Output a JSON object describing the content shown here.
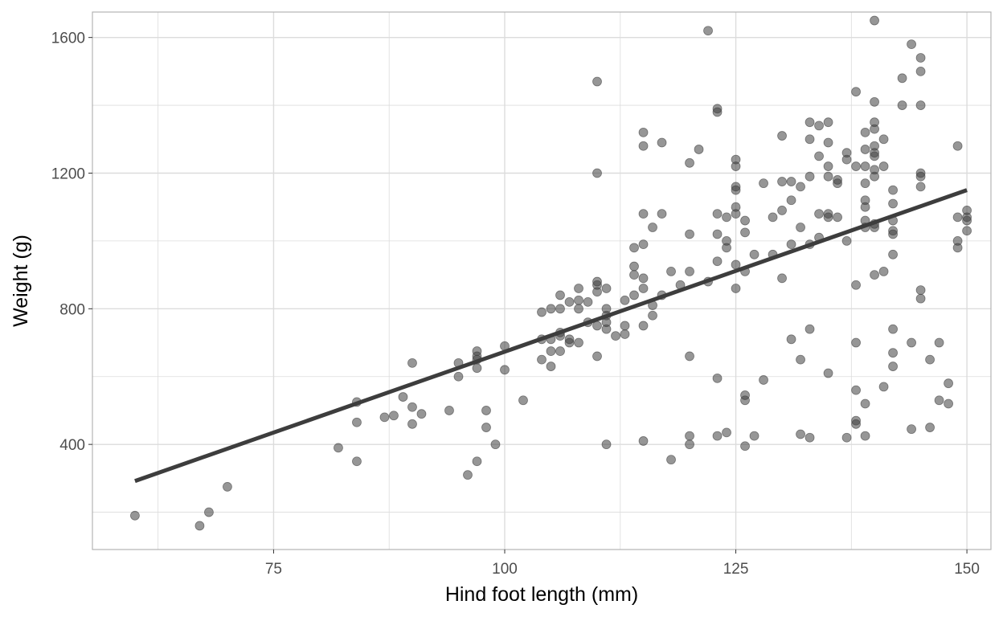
{
  "chart_data": {
    "type": "scatter",
    "title": "",
    "xlabel": "Hind foot length (mm)",
    "ylabel": "Weight (g)",
    "xlim": [
      55.4,
      152.6
    ],
    "ylim": [
      90,
      1675
    ],
    "x_ticks": [
      75,
      100,
      125,
      150
    ],
    "x_tick_labels": [
      "75",
      "100",
      "125",
      "150"
    ],
    "y_ticks": [
      400,
      800,
      1200,
      1600
    ],
    "y_tick_labels": [
      "400",
      "800",
      "1200",
      "1600"
    ],
    "x_minor_grid": [
      62.5,
      87.5,
      112.5,
      137.5
    ],
    "y_minor_grid": [
      200,
      600,
      1000,
      1400
    ],
    "grid": true,
    "legend": "none",
    "point_color": "#404040",
    "point_opacity": 0.55,
    "line_color": "#3d3d3d",
    "panel_border": "#b3b3b3",
    "grid_color": "#dcdcdc",
    "trend_line": {
      "x": [
        60,
        150
      ],
      "y": [
        292,
        1150
      ]
    },
    "points": [
      [
        60,
        190
      ],
      [
        67,
        160
      ],
      [
        68,
        200
      ],
      [
        70,
        275
      ],
      [
        82,
        390
      ],
      [
        84,
        350
      ],
      [
        84,
        465
      ],
      [
        84,
        525
      ],
      [
        87,
        480
      ],
      [
        88,
        485
      ],
      [
        89,
        540
      ],
      [
        90,
        460
      ],
      [
        90,
        510
      ],
      [
        90,
        640
      ],
      [
        91,
        490
      ],
      [
        94,
        500
      ],
      [
        95,
        600
      ],
      [
        95,
        640
      ],
      [
        96,
        310
      ],
      [
        97,
        350
      ],
      [
        97,
        625
      ],
      [
        97,
        650
      ],
      [
        97,
        660
      ],
      [
        97,
        675
      ],
      [
        98,
        450
      ],
      [
        98,
        500
      ],
      [
        99,
        400
      ],
      [
        100,
        620
      ],
      [
        100,
        690
      ],
      [
        102,
        530
      ],
      [
        104,
        650
      ],
      [
        104,
        710
      ],
      [
        104,
        790
      ],
      [
        105,
        630
      ],
      [
        105,
        675
      ],
      [
        105,
        710
      ],
      [
        105,
        800
      ],
      [
        106,
        675
      ],
      [
        106,
        720
      ],
      [
        106,
        730
      ],
      [
        106,
        800
      ],
      [
        106,
        840
      ],
      [
        107,
        700
      ],
      [
        107,
        710
      ],
      [
        107,
        820
      ],
      [
        108,
        700
      ],
      [
        108,
        800
      ],
      [
        108,
        825
      ],
      [
        108,
        860
      ],
      [
        109,
        760
      ],
      [
        109,
        820
      ],
      [
        110,
        660
      ],
      [
        110,
        750
      ],
      [
        110,
        850
      ],
      [
        110,
        870
      ],
      [
        110,
        880
      ],
      [
        110,
        1200
      ],
      [
        110,
        1470
      ],
      [
        111,
        400
      ],
      [
        111,
        740
      ],
      [
        111,
        760
      ],
      [
        111,
        780
      ],
      [
        111,
        800
      ],
      [
        111,
        860
      ],
      [
        112,
        720
      ],
      [
        113,
        725
      ],
      [
        113,
        750
      ],
      [
        113,
        825
      ],
      [
        114,
        840
      ],
      [
        114,
        900
      ],
      [
        114,
        925
      ],
      [
        114,
        980
      ],
      [
        115,
        410
      ],
      [
        115,
        750
      ],
      [
        115,
        860
      ],
      [
        115,
        890
      ],
      [
        115,
        990
      ],
      [
        115,
        1080
      ],
      [
        115,
        1280
      ],
      [
        115,
        1320
      ],
      [
        116,
        780
      ],
      [
        116,
        810
      ],
      [
        116,
        1040
      ],
      [
        117,
        840
      ],
      [
        117,
        1080
      ],
      [
        117,
        1290
      ],
      [
        118,
        355
      ],
      [
        118,
        910
      ],
      [
        119,
        870
      ],
      [
        120,
        400
      ],
      [
        120,
        425
      ],
      [
        120,
        660
      ],
      [
        120,
        910
      ],
      [
        120,
        1020
      ],
      [
        120,
        1230
      ],
      [
        121,
        1270
      ],
      [
        122,
        880
      ],
      [
        122,
        1620
      ],
      [
        123,
        425
      ],
      [
        123,
        595
      ],
      [
        123,
        940
      ],
      [
        123,
        1020
      ],
      [
        123,
        1080
      ],
      [
        123,
        1380
      ],
      [
        123,
        1390
      ],
      [
        124,
        435
      ],
      [
        124,
        980
      ],
      [
        124,
        1000
      ],
      [
        124,
        1070
      ],
      [
        125,
        860
      ],
      [
        125,
        930
      ],
      [
        125,
        1080
      ],
      [
        125,
        1100
      ],
      [
        125,
        1150
      ],
      [
        125,
        1160
      ],
      [
        125,
        1220
      ],
      [
        125,
        1240
      ],
      [
        126,
        395
      ],
      [
        126,
        530
      ],
      [
        126,
        545
      ],
      [
        126,
        910
      ],
      [
        126,
        1025
      ],
      [
        126,
        1060
      ],
      [
        127,
        425
      ],
      [
        127,
        960
      ],
      [
        128,
        590
      ],
      [
        128,
        1170
      ],
      [
        129,
        960
      ],
      [
        129,
        1070
      ],
      [
        130,
        890
      ],
      [
        130,
        1090
      ],
      [
        130,
        1175
      ],
      [
        130,
        1310
      ],
      [
        131,
        710
      ],
      [
        131,
        990
      ],
      [
        131,
        1120
      ],
      [
        131,
        1175
      ],
      [
        132,
        430
      ],
      [
        132,
        650
      ],
      [
        132,
        1040
      ],
      [
        132,
        1160
      ],
      [
        133,
        420
      ],
      [
        133,
        740
      ],
      [
        133,
        990
      ],
      [
        133,
        1190
      ],
      [
        133,
        1300
      ],
      [
        133,
        1350
      ],
      [
        134,
        1010
      ],
      [
        134,
        1080
      ],
      [
        134,
        1250
      ],
      [
        134,
        1340
      ],
      [
        135,
        610
      ],
      [
        135,
        1070
      ],
      [
        135,
        1080
      ],
      [
        135,
        1190
      ],
      [
        135,
        1220
      ],
      [
        135,
        1290
      ],
      [
        135,
        1350
      ],
      [
        136,
        1070
      ],
      [
        136,
        1170
      ],
      [
        136,
        1180
      ],
      [
        137,
        420
      ],
      [
        137,
        1000
      ],
      [
        137,
        1240
      ],
      [
        137,
        1260
      ],
      [
        138,
        460
      ],
      [
        138,
        470
      ],
      [
        138,
        560
      ],
      [
        138,
        700
      ],
      [
        138,
        870
      ],
      [
        138,
        1220
      ],
      [
        138,
        1440
      ],
      [
        139,
        425
      ],
      [
        139,
        520
      ],
      [
        139,
        1040
      ],
      [
        139,
        1060
      ],
      [
        139,
        1100
      ],
      [
        139,
        1120
      ],
      [
        139,
        1170
      ],
      [
        139,
        1220
      ],
      [
        139,
        1270
      ],
      [
        139,
        1320
      ],
      [
        140,
        900
      ],
      [
        140,
        1040
      ],
      [
        140,
        1050
      ],
      [
        140,
        1190
      ],
      [
        140,
        1210
      ],
      [
        140,
        1250
      ],
      [
        140,
        1260
      ],
      [
        140,
        1280
      ],
      [
        140,
        1330
      ],
      [
        140,
        1350
      ],
      [
        140,
        1410
      ],
      [
        140,
        1650
      ],
      [
        141,
        570
      ],
      [
        141,
        910
      ],
      [
        141,
        1220
      ],
      [
        141,
        1300
      ],
      [
        142,
        630
      ],
      [
        142,
        670
      ],
      [
        142,
        740
      ],
      [
        142,
        960
      ],
      [
        142,
        1020
      ],
      [
        142,
        1030
      ],
      [
        142,
        1060
      ],
      [
        142,
        1110
      ],
      [
        142,
        1150
      ],
      [
        143,
        1400
      ],
      [
        143,
        1480
      ],
      [
        144,
        445
      ],
      [
        144,
        700
      ],
      [
        144,
        1580
      ],
      [
        145,
        830
      ],
      [
        145,
        855
      ],
      [
        145,
        1160
      ],
      [
        145,
        1190
      ],
      [
        145,
        1200
      ],
      [
        145,
        1400
      ],
      [
        145,
        1500
      ],
      [
        145,
        1540
      ],
      [
        146,
        450
      ],
      [
        146,
        650
      ],
      [
        147,
        530
      ],
      [
        147,
        700
      ],
      [
        148,
        520
      ],
      [
        148,
        580
      ],
      [
        149,
        980
      ],
      [
        149,
        1000
      ],
      [
        149,
        1070
      ],
      [
        149,
        1280
      ],
      [
        150,
        1030
      ],
      [
        150,
        1060
      ],
      [
        150,
        1070
      ],
      [
        150,
        1090
      ]
    ]
  }
}
